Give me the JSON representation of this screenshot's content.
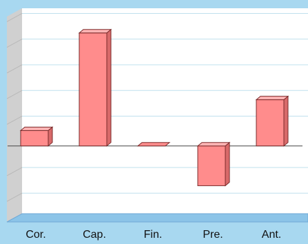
{
  "colors": {
    "background": "#a8d8f0",
    "plot_back": "#ffffff",
    "side_wall": "#d0d0d0",
    "floor": "#8cc4e8",
    "floor_edge": "#6fa9d6",
    "grid": "#bfe0ee",
    "bar_front": "#ff8c8c",
    "bar_top": "#ffb4b4",
    "bar_side": "#d86a6a",
    "bar_stroke": "#7a2a2a",
    "zero_line": "#444444",
    "tick_text": "#111111"
  },
  "chart_data": {
    "type": "bar",
    "style": "3d",
    "categories": [
      "Cor.",
      "Cap.",
      "Fin.",
      "Pre.",
      "Ant."
    ],
    "values": [
      60,
      440,
      0,
      -155,
      180
    ],
    "ylim": [
      -280,
      520
    ],
    "grid": true,
    "y_tick_labels_visible": false,
    "title": "",
    "xlabel": "",
    "ylabel": ""
  }
}
